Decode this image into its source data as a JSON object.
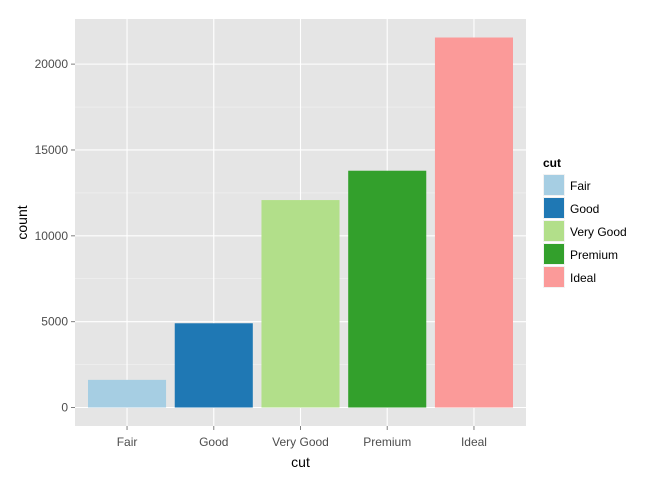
{
  "chart_data": {
    "type": "bar",
    "categories": [
      "Fair",
      "Good",
      "Very Good",
      "Premium",
      "Ideal"
    ],
    "values": [
      1610,
      4906,
      12082,
      13791,
      21551
    ],
    "colors": [
      "#a6cee3",
      "#1f78b4",
      "#b2df8a",
      "#33a02c",
      "#fb9a99"
    ],
    "xlabel": "cut",
    "ylabel": "count",
    "ylim": [
      -1078,
      22629
    ],
    "yticks": [
      0,
      5000,
      10000,
      15000,
      20000
    ],
    "ytick_labels": [
      "0",
      "5000",
      "10000",
      "15000",
      "20000"
    ],
    "grid": true,
    "panel_background": "#e5e5e5",
    "legend": {
      "title": "cut",
      "position": "right",
      "entries": [
        "Fair",
        "Good",
        "Very Good",
        "Premium",
        "Ideal"
      ]
    }
  }
}
